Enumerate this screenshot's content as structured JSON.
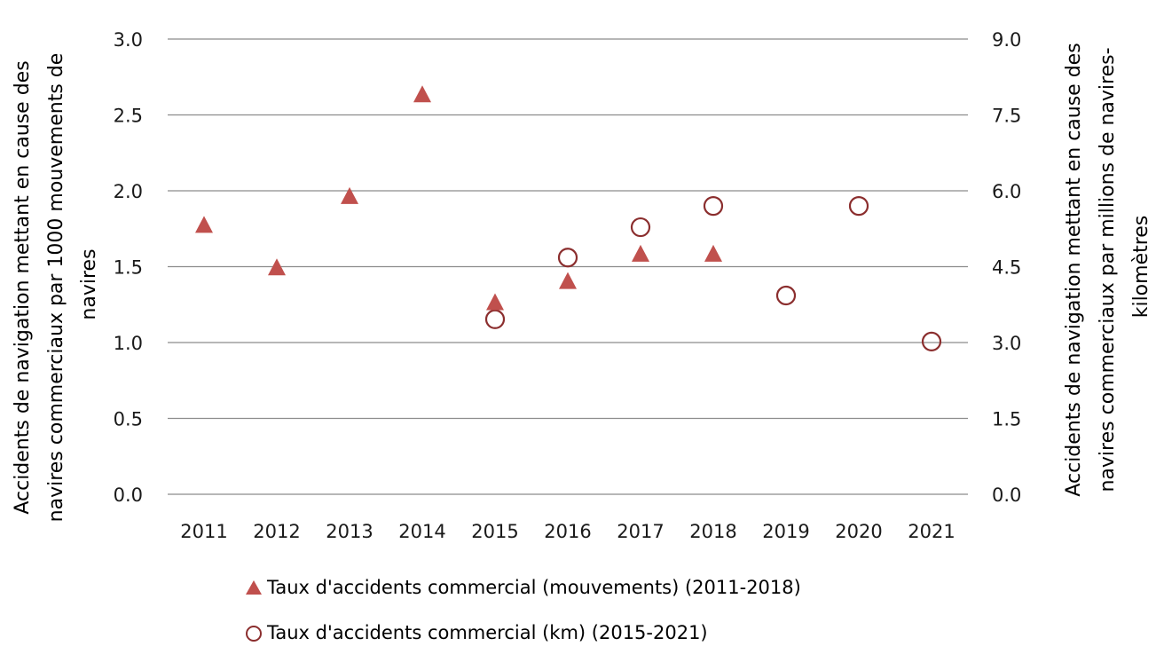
{
  "chart_data": {
    "type": "scatter",
    "title": "",
    "categories": [
      "2011",
      "2012",
      "2013",
      "2014",
      "2015",
      "2016",
      "2017",
      "2018",
      "2019",
      "2020",
      "2021"
    ],
    "y_left": {
      "label_lines": [
        "Accidents de navigation mettant en cause des",
        "navires commerciaux par 1000 mouvements de",
        "navires"
      ],
      "range": [
        0,
        3.0
      ],
      "ticks": [
        "0.0",
        "0.5",
        "1.0",
        "1.5",
        "2.0",
        "2.5",
        "3.0"
      ],
      "tick_values": [
        0,
        0.5,
        1.0,
        1.5,
        2.0,
        2.5,
        3.0
      ]
    },
    "y_right": {
      "label_lines": [
        "Accidents de navigation mettant en cause des",
        "navires commerciaux par millions de navires-",
        "kilomètres"
      ],
      "range": [
        0,
        9.0
      ],
      "ticks": [
        "0.0",
        "1.5",
        "3.0",
        "4.5",
        "6.0",
        "7.5",
        "9.0"
      ],
      "tick_values": [
        0,
        1.5,
        3.0,
        4.5,
        6.0,
        7.5,
        9.0
      ]
    },
    "grid": true,
    "legend_position": "bottom",
    "series": [
      {
        "name": "Taux d'accidents commercial (mouvements) (2011-2018)",
        "marker": "triangle",
        "axis": "left",
        "color": "#c0504d",
        "points": [
          {
            "x": "2011",
            "y": 1.77
          },
          {
            "x": "2012",
            "y": 1.49
          },
          {
            "x": "2013",
            "y": 1.96
          },
          {
            "x": "2014",
            "y": 2.63
          },
          {
            "x": "2015",
            "y": 1.26
          },
          {
            "x": "2016",
            "y": 1.4
          },
          {
            "x": "2017",
            "y": 1.58
          },
          {
            "x": "2018",
            "y": 1.58
          }
        ]
      },
      {
        "name": "Taux d'accidents commercial (km) (2015-2021)",
        "marker": "circle-open",
        "axis": "right",
        "color": "#8b2e2e",
        "points": [
          {
            "x": "2015",
            "y": 3.46
          },
          {
            "x": "2016",
            "y": 4.68
          },
          {
            "x": "2017",
            "y": 5.28
          },
          {
            "x": "2018",
            "y": 5.7
          },
          {
            "x": "2019",
            "y": 3.93
          },
          {
            "x": "2020",
            "y": 5.7
          },
          {
            "x": "2021",
            "y": 3.02
          }
        ]
      }
    ]
  },
  "legend": {
    "items": [
      {
        "label": "Taux d'accidents commercial (mouvements) (2011-2018)",
        "icon": "triangle-icon"
      },
      {
        "label": "Taux d'accidents commercial (km) (2015-2021)",
        "icon": "circle-icon"
      }
    ]
  }
}
